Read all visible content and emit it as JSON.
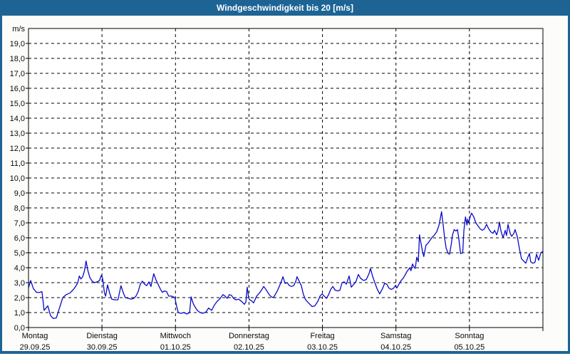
{
  "window": {
    "title": "Windgeschwindigkeit bis 20 [m/s]"
  },
  "colors": {
    "frame_blue": "#1D6495",
    "titlebar_blue": "#1D6495",
    "title_text": "#FFFFFF",
    "plot_background": "#FFFFFF",
    "page_background": "#FCFDFA",
    "grid_and_axis": "#000000",
    "label_text": "#0A0A0A",
    "series_line": "#0909C8"
  },
  "y_axis": {
    "unit_label": "m/s",
    "tick_labels": [
      "0,0",
      "1,0",
      "2,0",
      "3,0",
      "4,0",
      "5,0",
      "6,0",
      "7,0",
      "8,0",
      "9,0",
      "10,0",
      "11,0",
      "12,0",
      "13,0",
      "14,0",
      "15,0",
      "16,0",
      "17,0",
      "18,0",
      "19,0"
    ]
  },
  "x_axis": {
    "days": [
      {
        "name": "Montag",
        "date": "29.09.25"
      },
      {
        "name": "Dienstag",
        "date": "30.09.25"
      },
      {
        "name": "Mittwoch",
        "date": "01.10.25"
      },
      {
        "name": "Donnerstag",
        "date": "02.10.25"
      },
      {
        "name": "Freitag",
        "date": "03.10.25"
      },
      {
        "name": "Samstag",
        "date": "04.10.25"
      },
      {
        "name": "Sonntag",
        "date": "05.10.25"
      }
    ]
  },
  "chart_data": {
    "type": "line",
    "title": "Windgeschwindigkeit bis 20 [m/s]",
    "ylabel": "m/s",
    "ylim": [
      0,
      20
    ],
    "ytick_step": 1,
    "grid": "dashed",
    "legend": "none",
    "x_unit": "hours since Montag 29.09.25 00:00",
    "xlim": [
      0,
      168
    ],
    "day_boundaries_hours": [
      0,
      24,
      48,
      72,
      96,
      120,
      144,
      168
    ],
    "series": [
      {
        "name": "Windgeschwindigkeit [m/s]",
        "points": [
          [
            0,
            2.65
          ],
          [
            0.7,
            3.15
          ],
          [
            1.6,
            2.6
          ],
          [
            2.6,
            2.35
          ],
          [
            3.7,
            2.35
          ],
          [
            4.4,
            2.4
          ],
          [
            5.1,
            1.15
          ],
          [
            6.3,
            1.45
          ],
          [
            7.2,
            0.8
          ],
          [
            8.1,
            0.6
          ],
          [
            9.1,
            0.65
          ],
          [
            10.2,
            1.35
          ],
          [
            11.2,
            2.0
          ],
          [
            12.3,
            2.2
          ],
          [
            13.5,
            2.3
          ],
          [
            14.7,
            2.55
          ],
          [
            15.4,
            2.75
          ],
          [
            16.1,
            3.0
          ],
          [
            16.6,
            3.45
          ],
          [
            17.1,
            3.25
          ],
          [
            17.7,
            3.4
          ],
          [
            18.3,
            3.8
          ],
          [
            18.8,
            4.45
          ],
          [
            19.4,
            3.8
          ],
          [
            20,
            3.35
          ],
          [
            20.8,
            3.1
          ],
          [
            21.6,
            3.0
          ],
          [
            22.4,
            3.05
          ],
          [
            23.2,
            3.15
          ],
          [
            23.8,
            3.5
          ],
          [
            24.2,
            3.3
          ],
          [
            24.8,
            2.3
          ],
          [
            25.2,
            2.1
          ],
          [
            25.8,
            2.85
          ],
          [
            26.5,
            2.3
          ],
          [
            27.2,
            1.9
          ],
          [
            28.2,
            1.85
          ],
          [
            29.2,
            1.85
          ],
          [
            30.2,
            2.8
          ],
          [
            30.9,
            2.35
          ],
          [
            31.6,
            2.0
          ],
          [
            32.6,
            1.95
          ],
          [
            33.5,
            1.9
          ],
          [
            34.4,
            1.95
          ],
          [
            35.1,
            2.1
          ],
          [
            35.8,
            2.4
          ],
          [
            36.5,
            2.9
          ],
          [
            37.2,
            3.1
          ],
          [
            37.9,
            2.9
          ],
          [
            38.6,
            2.8
          ],
          [
            39.3,
            3.05
          ],
          [
            40,
            2.75
          ],
          [
            40.9,
            3.6
          ],
          [
            41.6,
            3.2
          ],
          [
            42.3,
            2.9
          ],
          [
            43,
            2.6
          ],
          [
            43.7,
            2.35
          ],
          [
            44.4,
            2.45
          ],
          [
            45.1,
            2.4
          ],
          [
            45.8,
            2.1
          ],
          [
            46.8,
            2.1
          ],
          [
            47.8,
            2.0
          ],
          [
            48.4,
            1.4
          ],
          [
            48.9,
            1.0
          ],
          [
            49.8,
            0.95
          ],
          [
            50.8,
            1.0
          ],
          [
            51.7,
            0.9
          ],
          [
            52.6,
            1.0
          ],
          [
            53.1,
            2.05
          ],
          [
            53.8,
            1.6
          ],
          [
            54.3,
            1.4
          ],
          [
            55.1,
            1.15
          ],
          [
            56,
            1.0
          ],
          [
            57,
            0.95
          ],
          [
            58,
            1.05
          ],
          [
            58.8,
            1.3
          ],
          [
            59.8,
            1.15
          ],
          [
            60.7,
            1.5
          ],
          [
            61.6,
            1.75
          ],
          [
            62.6,
            1.95
          ],
          [
            63.5,
            2.2
          ],
          [
            64.2,
            2.1
          ],
          [
            64.9,
            1.95
          ],
          [
            65.6,
            2.2
          ],
          [
            66.3,
            2.15
          ],
          [
            67,
            1.95
          ],
          [
            67.7,
            1.85
          ],
          [
            68.6,
            1.9
          ],
          [
            69.6,
            1.75
          ],
          [
            70.5,
            1.55
          ],
          [
            71,
            1.7
          ],
          [
            71.4,
            2.7
          ],
          [
            71.9,
            2.0
          ],
          [
            72.2,
            1.85
          ],
          [
            72.8,
            1.8
          ],
          [
            73.5,
            1.65
          ],
          [
            74.5,
            2.1
          ],
          [
            75.4,
            2.3
          ],
          [
            76.1,
            2.5
          ],
          [
            76.8,
            2.75
          ],
          [
            77.7,
            2.5
          ],
          [
            78.6,
            2.2
          ],
          [
            79.3,
            2.05
          ],
          [
            80,
            2.0
          ],
          [
            81,
            2.35
          ],
          [
            81.9,
            2.75
          ],
          [
            82.6,
            3.1
          ],
          [
            83.1,
            3.4
          ],
          [
            83.8,
            2.95
          ],
          [
            84.5,
            3.0
          ],
          [
            85.2,
            2.8
          ],
          [
            85.9,
            2.75
          ],
          [
            86.6,
            2.8
          ],
          [
            87.3,
            3.1
          ],
          [
            87.7,
            3.4
          ],
          [
            88.4,
            3.1
          ],
          [
            89.1,
            2.8
          ],
          [
            89.8,
            2.2
          ],
          [
            90.5,
            1.85
          ],
          [
            91.2,
            1.7
          ],
          [
            91.9,
            1.55
          ],
          [
            92.6,
            1.4
          ],
          [
            93.5,
            1.45
          ],
          [
            94.5,
            1.75
          ],
          [
            95.2,
            2.1
          ],
          [
            95.9,
            2.25
          ],
          [
            96.6,
            2.1
          ],
          [
            97.3,
            1.95
          ],
          [
            98,
            2.2
          ],
          [
            98.7,
            2.55
          ],
          [
            99.4,
            2.75
          ],
          [
            100.1,
            2.5
          ],
          [
            101,
            2.45
          ],
          [
            101.7,
            2.5
          ],
          [
            102.4,
            3.0
          ],
          [
            103.1,
            3.05
          ],
          [
            103.8,
            2.9
          ],
          [
            104.7,
            3.45
          ],
          [
            105.4,
            2.7
          ],
          [
            106.1,
            2.85
          ],
          [
            107,
            3.1
          ],
          [
            107.7,
            3.55
          ],
          [
            108.4,
            3.3
          ],
          [
            109.4,
            3.15
          ],
          [
            110.3,
            3.2
          ],
          [
            111.2,
            3.6
          ],
          [
            111.7,
            3.95
          ],
          [
            112.4,
            3.4
          ],
          [
            113.1,
            3.0
          ],
          [
            113.8,
            2.6
          ],
          [
            114.7,
            2.25
          ],
          [
            115.6,
            2.6
          ],
          [
            116.3,
            2.95
          ],
          [
            117,
            2.9
          ],
          [
            117.7,
            2.65
          ],
          [
            118.4,
            2.55
          ],
          [
            119.1,
            2.6
          ],
          [
            119.8,
            2.8
          ],
          [
            120.3,
            2.65
          ],
          [
            121,
            2.9
          ],
          [
            121.7,
            3.15
          ],
          [
            122.4,
            3.3
          ],
          [
            123.1,
            3.55
          ],
          [
            123.6,
            3.75
          ],
          [
            124,
            3.85
          ],
          [
            124.5,
            4.0
          ],
          [
            124.9,
            3.8
          ],
          [
            125.4,
            4.25
          ],
          [
            125.9,
            4.05
          ],
          [
            126.3,
            3.95
          ],
          [
            126.8,
            4.7
          ],
          [
            127.3,
            4.4
          ],
          [
            127.7,
            6.2
          ],
          [
            128.2,
            5.6
          ],
          [
            128.7,
            5.05
          ],
          [
            129.1,
            4.75
          ],
          [
            129.8,
            5.5
          ],
          [
            130.5,
            5.65
          ],
          [
            131.2,
            5.85
          ],
          [
            131.9,
            6.05
          ],
          [
            132.6,
            6.2
          ],
          [
            133.3,
            6.4
          ],
          [
            134,
            6.8
          ],
          [
            134.5,
            7.3
          ],
          [
            134.9,
            7.75
          ],
          [
            135.4,
            6.9
          ],
          [
            135.9,
            6.0
          ],
          [
            136.4,
            5.3
          ],
          [
            137.1,
            4.95
          ],
          [
            137.5,
            4.9
          ],
          [
            138,
            5.5
          ],
          [
            138.5,
            6.2
          ],
          [
            139,
            6.55
          ],
          [
            139.6,
            6.45
          ],
          [
            140.1,
            6.55
          ],
          [
            140.6,
            5.85
          ],
          [
            141.1,
            4.95
          ],
          [
            141.8,
            5.0
          ],
          [
            142.2,
            6.5
          ],
          [
            142.7,
            7.4
          ],
          [
            143.2,
            6.85
          ],
          [
            143.4,
            7.25
          ],
          [
            143.8,
            7.0
          ],
          [
            144.3,
            7.45
          ],
          [
            144.7,
            7.65
          ],
          [
            145.4,
            7.4
          ],
          [
            146.1,
            7.0
          ],
          [
            146.8,
            6.8
          ],
          [
            147.5,
            6.6
          ],
          [
            148.2,
            6.5
          ],
          [
            148.9,
            6.6
          ],
          [
            149.6,
            6.9
          ],
          [
            150.3,
            6.6
          ],
          [
            151,
            6.4
          ],
          [
            151.7,
            6.3
          ],
          [
            152.2,
            6.5
          ],
          [
            152.9,
            6.2
          ],
          [
            153.3,
            6.45
          ],
          [
            153.8,
            7.05
          ],
          [
            154.3,
            6.45
          ],
          [
            155,
            6.0
          ],
          [
            155.7,
            6.5
          ],
          [
            156.1,
            6.15
          ],
          [
            156.6,
            6.9
          ],
          [
            157.3,
            6.3
          ],
          [
            157.8,
            6.1
          ],
          [
            158.5,
            6.3
          ],
          [
            158.9,
            6.55
          ],
          [
            159.6,
            6.1
          ],
          [
            160.3,
            5.3
          ],
          [
            161,
            4.6
          ],
          [
            161.7,
            4.45
          ],
          [
            162.4,
            4.3
          ],
          [
            163.1,
            4.7
          ],
          [
            163.6,
            4.95
          ],
          [
            164,
            4.4
          ],
          [
            164.7,
            4.3
          ],
          [
            165.4,
            4.35
          ],
          [
            165.9,
            4.9
          ],
          [
            166.6,
            4.5
          ],
          [
            167.3,
            5.0
          ],
          [
            168,
            5.1
          ]
        ]
      }
    ]
  }
}
